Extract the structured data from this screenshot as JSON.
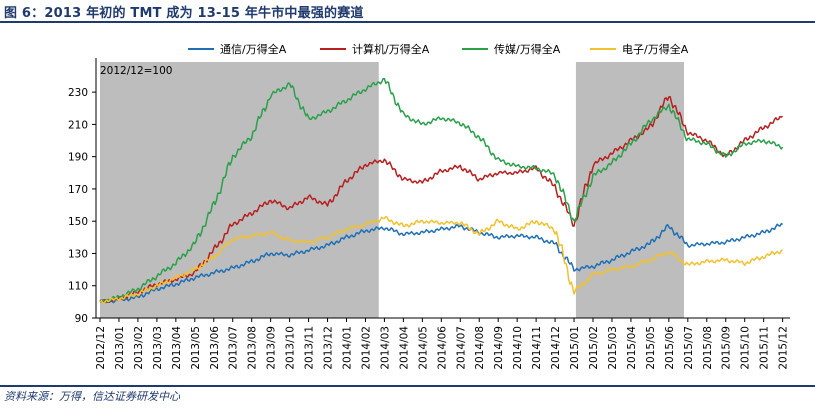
{
  "figure": {
    "title": "图 6：2013 年初的 TMT 成为 13-15 年牛市中最强的赛道",
    "source": "资料来源：万得，信达证券研发中心"
  },
  "chart_data": {
    "type": "line",
    "base_note": "2012/12=100",
    "ylim": [
      90,
      240
    ],
    "yticks": [
      90,
      110,
      130,
      150,
      170,
      190,
      210,
      230
    ],
    "grid": false,
    "legend_position": "top",
    "x_categories": [
      "2012/12",
      "2013/01",
      "2013/02",
      "2013/03",
      "2013/04",
      "2013/05",
      "2013/06",
      "2013/07",
      "2013/08",
      "2013/09",
      "2013/10",
      "2013/11",
      "2013/12",
      "2014/01",
      "2014/02",
      "2014/03",
      "2014/04",
      "2014/05",
      "2014/06",
      "2014/07",
      "2014/08",
      "2014/09",
      "2014/10",
      "2014/11",
      "2014/12",
      "2015/01",
      "2015/02",
      "2015/03",
      "2015/04",
      "2015/05",
      "2015/06",
      "2015/07",
      "2015/08",
      "2015/09",
      "2015/10",
      "2015/11",
      "2015/12"
    ],
    "shaded_periods": [
      {
        "from": 0,
        "to": 14.7
      },
      {
        "from": 25.1,
        "to": 30.8
      }
    ],
    "series": [
      {
        "name": "通信/万得全A",
        "color": "#1f6fb5",
        "values": [
          100,
          101,
          103,
          108,
          111,
          115,
          118,
          121,
          125,
          130,
          129,
          132,
          135,
          140,
          144,
          146,
          142,
          143,
          145,
          147,
          143,
          140,
          141,
          140,
          136,
          120,
          122,
          126,
          131,
          136,
          147,
          135,
          136,
          137,
          140,
          143,
          148
        ]
      },
      {
        "name": "计算机/万得全A",
        "color": "#b81f1f",
        "values": [
          100,
          102,
          106,
          111,
          114,
          118,
          132,
          148,
          155,
          163,
          158,
          165,
          160,
          175,
          185,
          188,
          176,
          174,
          181,
          184,
          176,
          180,
          180,
          183,
          171,
          148,
          185,
          192,
          200,
          208,
          228,
          205,
          200,
          190,
          200,
          208,
          215
        ]
      },
      {
        "name": "传媒/万得全A",
        "color": "#2aa04a",
        "values": [
          100,
          103,
          108,
          116,
          124,
          136,
          160,
          190,
          203,
          228,
          235,
          213,
          218,
          225,
          232,
          238,
          216,
          210,
          214,
          211,
          202,
          188,
          184,
          183,
          179,
          150,
          178,
          186,
          198,
          212,
          222,
          201,
          198,
          190,
          198,
          200,
          196
        ]
      },
      {
        "name": "电子/万得全A",
        "color": "#f2c12e",
        "values": [
          100,
          102,
          105,
          110,
          115,
          120,
          128,
          139,
          141,
          143,
          138,
          137,
          140,
          145,
          148,
          152,
          147,
          150,
          149,
          149,
          142,
          150,
          145,
          150,
          145,
          106,
          117,
          120,
          122,
          126,
          131,
          123,
          125,
          126,
          124,
          128,
          132
        ]
      }
    ]
  }
}
